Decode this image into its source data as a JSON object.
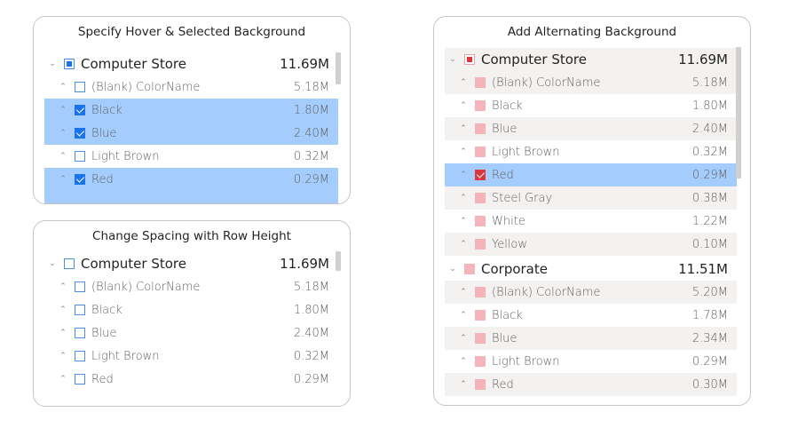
{
  "panels": {
    "hover": {
      "title": "Specify Hover & Selected Background",
      "rows": [
        {
          "label": "Computer Store",
          "value": "11.69M"
        },
        {
          "label": "(Blank) ColorName",
          "value": "5.18M"
        },
        {
          "label": "Black",
          "value": "1.80M"
        },
        {
          "label": "Blue",
          "value": "2.40M"
        },
        {
          "label": "Light Brown",
          "value": "0.32M"
        },
        {
          "label": "Red",
          "value": "0.29M"
        }
      ]
    },
    "spacing": {
      "title": "Change Spacing with Row Height",
      "rows": [
        {
          "label": "Computer Store",
          "value": "11.69M"
        },
        {
          "label": "(Blank) ColorName",
          "value": "5.18M"
        },
        {
          "label": "Black",
          "value": "1.80M"
        },
        {
          "label": "Blue",
          "value": "2.40M"
        },
        {
          "label": "Light Brown",
          "value": "0.32M"
        },
        {
          "label": "Red",
          "value": "0.29M"
        }
      ]
    },
    "alternating": {
      "title": "Add Alternating Background",
      "rows": [
        {
          "label": "Computer Store",
          "value": "11.69M"
        },
        {
          "label": "(Blank) ColorName",
          "value": "5.18M"
        },
        {
          "label": "Black",
          "value": "1.80M"
        },
        {
          "label": "Blue",
          "value": "2.40M"
        },
        {
          "label": "Light Brown",
          "value": "0.32M"
        },
        {
          "label": "Red",
          "value": "0.29M"
        },
        {
          "label": "Steel Gray",
          "value": "0.38M"
        },
        {
          "label": "White",
          "value": "1.22M"
        },
        {
          "label": "Yellow",
          "value": "0.10M"
        },
        {
          "label": "Corporate",
          "value": "11.51M"
        },
        {
          "label": "(Blank) ColorName",
          "value": "5.20M"
        },
        {
          "label": "Black",
          "value": "1.78M"
        },
        {
          "label": "Blue",
          "value": "2.34M"
        },
        {
          "label": "Light Brown",
          "value": "0.29M"
        },
        {
          "label": "Red",
          "value": "0.30M"
        }
      ]
    }
  },
  "icons": {
    "collapse": "chevron-down-icon",
    "expand": "chevron-up-icon"
  },
  "colors": {
    "selected_background": "#a4cdfd",
    "alternating_background": "#f3f2f1",
    "checkbox_blue": "#1a73e8",
    "checkbox_pink": "#f4b4b9",
    "checkbox_red": "#d9363e"
  }
}
